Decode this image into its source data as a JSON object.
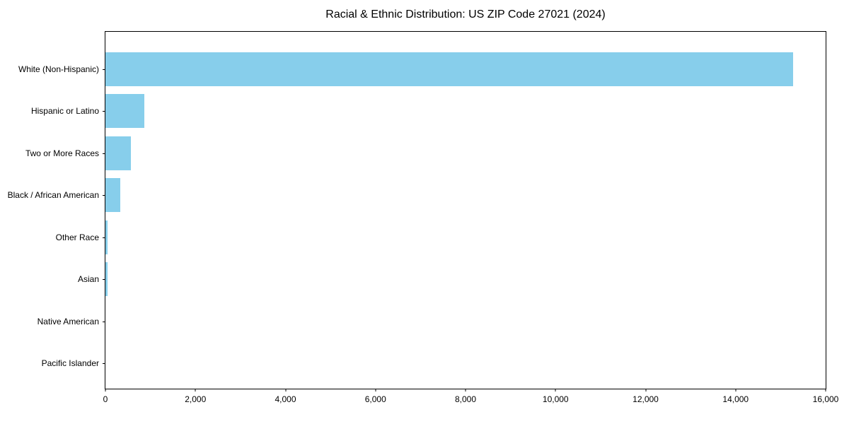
{
  "chart_data": {
    "type": "bar",
    "orientation": "horizontal",
    "title": "Racial & Ethnic Distribution: US ZIP Code 27021 (2024)",
    "categories": [
      "White (Non-Hispanic)",
      "Hispanic or Latino",
      "Two or More Races",
      "Black / African American",
      "Other Race",
      "Asian",
      "Native American",
      "Pacific Islander"
    ],
    "values": [
      15280,
      860,
      560,
      325,
      55,
      45,
      0,
      0
    ],
    "xlabel": "",
    "ylabel": "",
    "xlim": [
      0,
      16000
    ],
    "xticks": [
      0,
      2000,
      4000,
      6000,
      8000,
      10000,
      12000,
      14000,
      16000
    ],
    "xtick_labels": [
      "0",
      "2,000",
      "4,000",
      "6,000",
      "8,000",
      "10,000",
      "12,000",
      "14,000",
      "16,000"
    ],
    "bar_color": "#87CEEB",
    "frame_color": "#000000",
    "background_color": "#ffffff",
    "grid": false,
    "legend": null
  }
}
